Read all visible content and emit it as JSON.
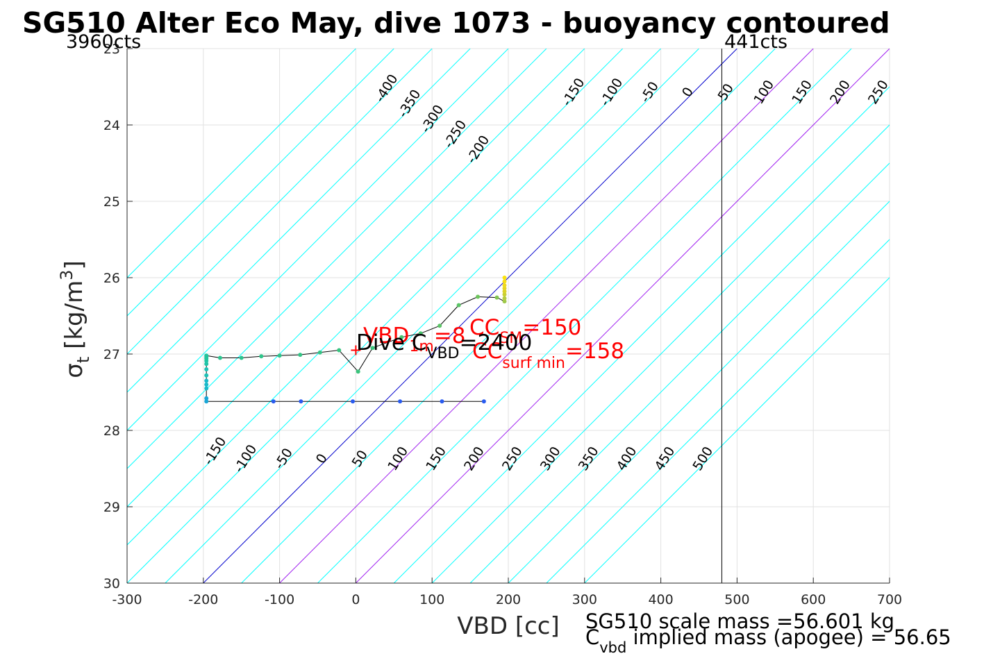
{
  "chart_data": {
    "type": "line",
    "title": "SG510 Alter Eco May, dive 1073 - buoyancy contoured",
    "xlabel": "VBD [cc]",
    "ylabel": "σ_t [kg/m^3]",
    "xlim": [
      -300,
      700
    ],
    "ylim": [
      23,
      30
    ],
    "y_reversed": true,
    "grid": true,
    "x_ticks": [
      -300,
      -200,
      -100,
      0,
      100,
      200,
      300,
      400,
      500,
      600,
      700
    ],
    "y_ticks": [
      23,
      24,
      25,
      26,
      27,
      28,
      29,
      30
    ],
    "counts_left": "3960cts",
    "counts_right": "441cts",
    "counts_right_vbd": 480,
    "contours": {
      "levels": [
        -500,
        -450,
        -400,
        -350,
        -300,
        -250,
        -200,
        -150,
        -100,
        -50,
        0,
        50,
        100,
        150,
        200,
        250,
        300,
        350,
        400,
        450,
        500
      ],
      "slope_cc_per_sigma": -100,
      "base_vbd_at_sigma30": -200,
      "color": "#00ffff",
      "zero_color": "#0000cd",
      "highlight_levels": [
        100,
        200
      ],
      "highlight_color": "#a020f0",
      "top_labels": [
        "-400",
        "-350",
        "-300",
        "-250",
        "-200",
        "-150",
        "-100",
        "-50",
        "0",
        "50",
        "100",
        "150",
        "200",
        "250",
        "300",
        "350",
        "400",
        "450",
        "500"
      ],
      "bottom_labels": [
        "-150",
        "-100",
        "-50",
        "0",
        "50",
        "100",
        "150",
        "200",
        "250",
        "300",
        "350",
        "400",
        "450",
        "500"
      ]
    },
    "vertical_line_vbd": 480,
    "series": [
      {
        "x": [
          168,
          113,
          58,
          -4,
          -72,
          -108,
          -196,
          -196,
          -196,
          -196,
          -196,
          -196,
          -196,
          -196,
          -196,
          -196,
          -196,
          -196,
          -178,
          -150,
          -124,
          -100,
          -73,
          -47,
          -22,
          3,
          22,
          60,
          85,
          110,
          135,
          160,
          185,
          195,
          195,
          195,
          195,
          195,
          195,
          195,
          195
        ],
        "y": [
          27.62,
          27.62,
          27.62,
          27.62,
          27.62,
          27.62,
          27.62,
          27.58,
          27.45,
          27.4,
          27.35,
          27.28,
          27.2,
          27.13,
          27.09,
          27.06,
          27.04,
          27.02,
          27.05,
          27.05,
          27.03,
          27.02,
          27.01,
          26.98,
          26.95,
          27.23,
          26.92,
          26.78,
          26.73,
          26.63,
          26.36,
          26.25,
          26.26,
          26.31,
          26.27,
          26.22,
          26.18,
          26.14,
          26.1,
          26.05,
          26.0
        ],
        "colors": [
          "#2a5cf0",
          "#2a5cf0",
          "#2a5cf0",
          "#2a5cf0",
          "#2a5cf0",
          "#2a5cf0",
          "#1aa6d6",
          "#1aa6d6",
          "#1ab9c9",
          "#1ab9c9",
          "#1ab9c9",
          "#1ec1b6",
          "#1ec1b6",
          "#20c4a8",
          "#20c4a8",
          "#22c59d",
          "#22c59d",
          "#22c59d",
          "#2cc48f",
          "#2cc48f",
          "#30c48a",
          "#30c48a",
          "#35c485",
          "#35c485",
          "#38c480",
          "#3ac47c",
          "#3ac47c",
          "#4ac46e",
          "#4ac46e",
          "#5ac465",
          "#5ac465",
          "#6dc55c",
          "#82c553",
          "#9ec84a",
          "#b5cc3f",
          "#c8cf33",
          "#d9d32a",
          "#e6d522",
          "#f0da1c",
          "#f7de15",
          "#fbe30f"
        ]
      }
    ],
    "marker_plus": {
      "x": 0,
      "y": 26.95
    },
    "annotations": {
      "vbd1m_main": "VBD",
      "vbd1m_sub": "1m",
      "vbd1m_tail": "=8",
      "ccsm_main": "CC",
      "ccsm_sub": "SM",
      "ccsm_tail": "=150",
      "ccsurf_main": "CC",
      "ccsurf_sub": "surf min",
      "ccsurf_tail": "=158",
      "dive_main": "Dive C",
      "dive_sub": "VBD",
      "dive_tail": "=2400"
    },
    "footer": {
      "line1": "SG510 scale mass =56.601 kg",
      "line2_main": "C",
      "line2_sub": "vbd",
      "line2_tail": " implied mass (apogee) = 56.65"
    }
  }
}
